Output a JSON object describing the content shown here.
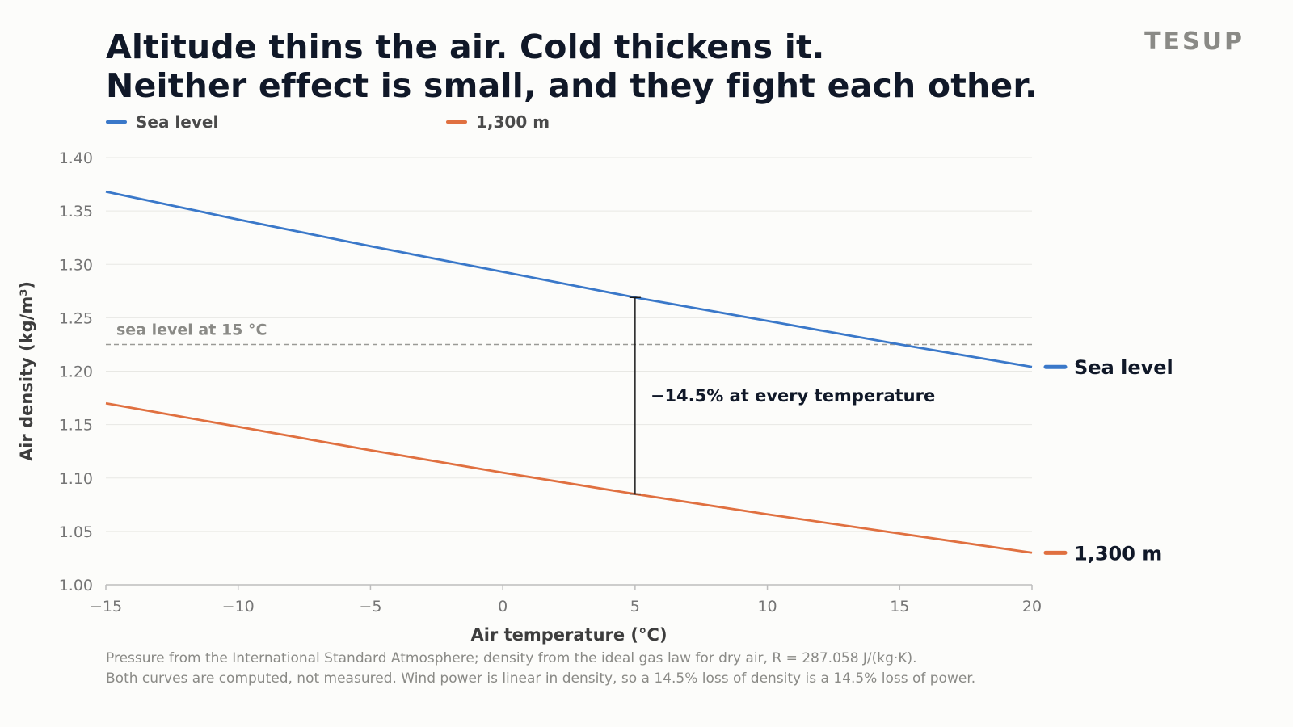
{
  "header": {
    "title_line1": "Altitude thins the air. Cold thickens it.",
    "title_line2": "Neither effect is small, and they fight each other.",
    "brand": "TESUP"
  },
  "legend": [
    {
      "label": "Sea level",
      "color": "#3a78c9"
    },
    {
      "label": "1,300 m",
      "color": "#e07040"
    }
  ],
  "chart_data": {
    "type": "line",
    "xlabel": "Air temperature (°C)",
    "ylabel": "Air density (kg/m³)",
    "xlim": [
      -15,
      20
    ],
    "ylim": [
      1.0,
      1.4
    ],
    "x_ticks": [
      -15,
      -10,
      -5,
      0,
      5,
      10,
      15,
      20
    ],
    "x_tick_labels": [
      "−15",
      "−10",
      "−5",
      "0",
      "5",
      "10",
      "15",
      "20"
    ],
    "y_ticks": [
      1.0,
      1.05,
      1.1,
      1.15,
      1.2,
      1.25,
      1.3,
      1.35,
      1.4
    ],
    "y_tick_labels": [
      "1.00",
      "1.05",
      "1.10",
      "1.15",
      "1.20",
      "1.25",
      "1.30",
      "1.35",
      "1.40"
    ],
    "grid": "horizontal",
    "legend_position": "top-left",
    "series": [
      {
        "name": "Sea level",
        "color": "#3a78c9",
        "end_label": "Sea level",
        "x": [
          -15,
          -10,
          -5,
          0,
          5,
          10,
          15,
          20
        ],
        "y": [
          1.368,
          1.342,
          1.317,
          1.293,
          1.269,
          1.247,
          1.225,
          1.204
        ]
      },
      {
        "name": "1,300 m",
        "color": "#e07040",
        "end_label": "1,300 m",
        "x": [
          -15,
          -10,
          -5,
          0,
          5,
          10,
          15,
          20
        ],
        "y": [
          1.17,
          1.148,
          1.126,
          1.105,
          1.085,
          1.066,
          1.048,
          1.03
        ]
      }
    ],
    "reference_line": {
      "y": 1.225,
      "label": "sea level at 15 °C"
    },
    "annotation": {
      "x": 5,
      "y_top": 1.269,
      "y_bottom": 1.085,
      "label": "−14.5% at every temperature"
    }
  },
  "footnote": {
    "line1": "Pressure from the International Standard Atmosphere; density from the ideal gas law for dry air, R = 287.058 J/(kg·K).",
    "line2": "Both curves are computed, not measured. Wind power is linear in density, so a 14.5% loss of density is a 14.5% loss of power."
  }
}
